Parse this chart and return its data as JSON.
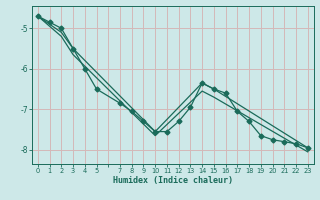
{
  "background_color": "#cde8e8",
  "grid_color": "#b0d0d0",
  "line_color": "#1a6b5a",
  "xlabel": "Humidex (Indice chaleur)",
  "xlim": [
    -0.5,
    23.5
  ],
  "ylim": [
    -8.35,
    -4.45
  ],
  "yticks": [
    -8,
    -7,
    -6,
    -5
  ],
  "xticks": [
    0,
    1,
    2,
    3,
    4,
    5,
    6,
    7,
    8,
    9,
    10,
    11,
    12,
    13,
    14,
    15,
    16,
    17,
    18,
    19,
    20,
    21,
    22,
    23
  ],
  "xtick_labels": [
    "0",
    "1",
    "2",
    "3",
    "4",
    "5",
    "",
    "7",
    "8",
    "9",
    "10",
    "11",
    "12",
    "13",
    "14",
    "15",
    "16",
    "17",
    "18",
    "19",
    "20",
    "21",
    "22",
    "23"
  ],
  "line1_x": [
    0,
    1,
    2,
    3,
    4,
    5,
    7,
    8,
    9,
    10,
    11,
    12,
    13,
    14,
    15,
    16,
    17,
    18,
    19,
    20,
    21,
    22,
    23
  ],
  "line1_y": [
    -4.7,
    -4.85,
    -5.0,
    -5.5,
    -6.0,
    -6.5,
    -6.85,
    -7.05,
    -7.3,
    -7.55,
    -7.55,
    -7.3,
    -6.95,
    -6.35,
    -6.5,
    -6.6,
    -7.05,
    -7.3,
    -7.65,
    -7.75,
    -7.8,
    -7.85,
    -7.95
  ],
  "line2_x": [
    0,
    2,
    3,
    10,
    14,
    15,
    23
  ],
  "line2_y": [
    -4.7,
    -5.1,
    -5.5,
    -7.55,
    -6.35,
    -6.5,
    -7.95
  ],
  "line3_x": [
    0,
    2,
    3,
    10,
    14,
    15,
    23
  ],
  "line3_y": [
    -4.7,
    -5.2,
    -5.65,
    -7.65,
    -6.55,
    -6.7,
    -8.05
  ],
  "linewidth": 0.9,
  "markersize": 2.5
}
